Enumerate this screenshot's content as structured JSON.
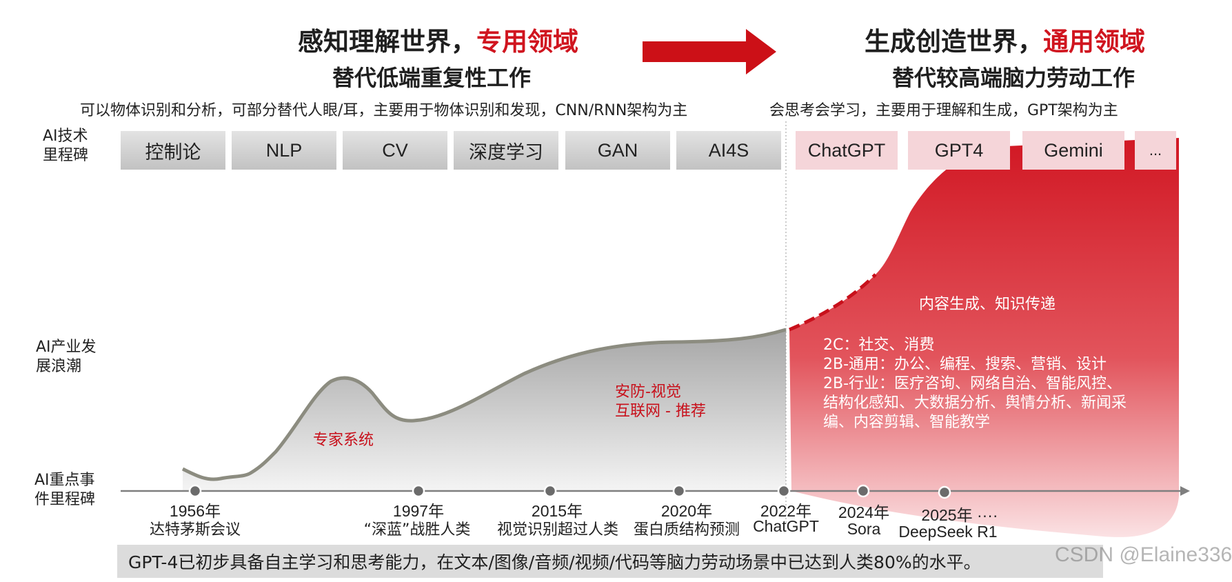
{
  "left_header": {
    "title_part1": "感知理解世界，",
    "title_part2": "专用领域",
    "subtitle": "替代低端重复性工作",
    "description": "可以物体识别和分析，可部分替代人眼/耳，主要用于物体识别和发现，CNN/RNN架构为主"
  },
  "right_header": {
    "title_part1": "生成创造世界，",
    "title_part2": "通用领域",
    "subtitle": "替代较高端脑力劳动工作",
    "description": "会思考会学习，主要用于理解和生成，GPT架构为主"
  },
  "row_labels": {
    "tech": "AI技术\n里程碑",
    "wave": "AI产业发\n展浪潮",
    "events": "AI重点事\n件里程碑"
  },
  "tech_milestones_left": [
    "控制论",
    "NLP",
    "CV",
    "深度学习",
    "GAN",
    "AI4S"
  ],
  "tech_milestones_right": [
    "ChatGPT",
    "GPT4",
    "Gemini",
    "..."
  ],
  "wave_labels": {
    "expert": "专家系统",
    "security": "安防-视觉",
    "internet": "互联网 - 推荐"
  },
  "gen_area": {
    "title": "内容生成、知识传递",
    "lines": [
      "2C：社交、消费",
      "2B-通用：办公、编程、搜索、营销、设计",
      "2B-行业：医疗咨询、网络自治、智能风控、",
      "结构化感知、大数据分析、舆情分析、新闻采",
      "编、内容剪辑、智能教学"
    ]
  },
  "events": [
    {
      "year": "1956年",
      "name": "达特茅斯会议"
    },
    {
      "year": "1997年",
      "name": "“深蓝”战胜人类"
    },
    {
      "year": "2015年",
      "name": "视觉识别超过人类"
    },
    {
      "year": "2020年",
      "name": "蛋白质结构预测"
    },
    {
      "year": "2022年",
      "name": "ChatGPT"
    },
    {
      "year": "2024年",
      "name": "Sora"
    },
    {
      "year": "2025年 ····",
      "name": "DeepSeek  R1"
    }
  ],
  "bottom_note": "GPT-4已初步具备自主学习和思考能力，在文本/图像/音频/视频/代码等脑力劳动场景中已达到人类80%的水平。",
  "watermark": "CSDN @Elaine336",
  "colors": {
    "accent_red": "#d0151f",
    "gray_curve": "#8c8c80",
    "milestone_gray": "#cfcfcf",
    "milestone_pink": "#f5d5d9"
  }
}
